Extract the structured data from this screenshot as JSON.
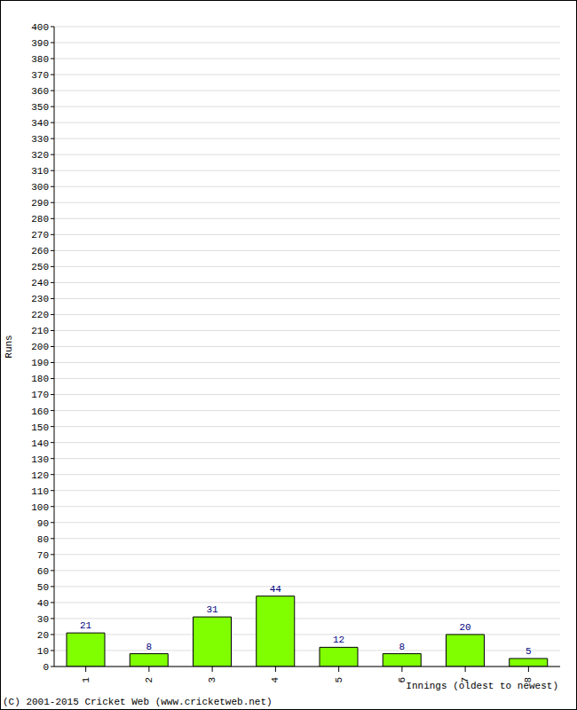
{
  "chart_data": {
    "type": "bar",
    "y_label": "Runs",
    "x_label": "Innings (oldest to newest)",
    "annotations": [
      "(C) 2001-2015 Cricket Web (www.cricketweb.net)"
    ],
    "categories": [
      "1",
      "2",
      "3",
      "4",
      "5",
      "6",
      "7",
      "8"
    ],
    "values": [
      21,
      8,
      31,
      44,
      12,
      8,
      20,
      5
    ],
    "color": "#80ff00",
    "ylim": [
      0,
      400
    ],
    "yticks": [
      0,
      10,
      20,
      30,
      40,
      50,
      60,
      70,
      80,
      90,
      100,
      110,
      120,
      130,
      140,
      150,
      160,
      170,
      180,
      190,
      200,
      210,
      220,
      230,
      240,
      250,
      260,
      270,
      280,
      290,
      300,
      310,
      320,
      330,
      340,
      350,
      360,
      370,
      380,
      390,
      400
    ],
    "grid": true,
    "data_labels": true
  }
}
